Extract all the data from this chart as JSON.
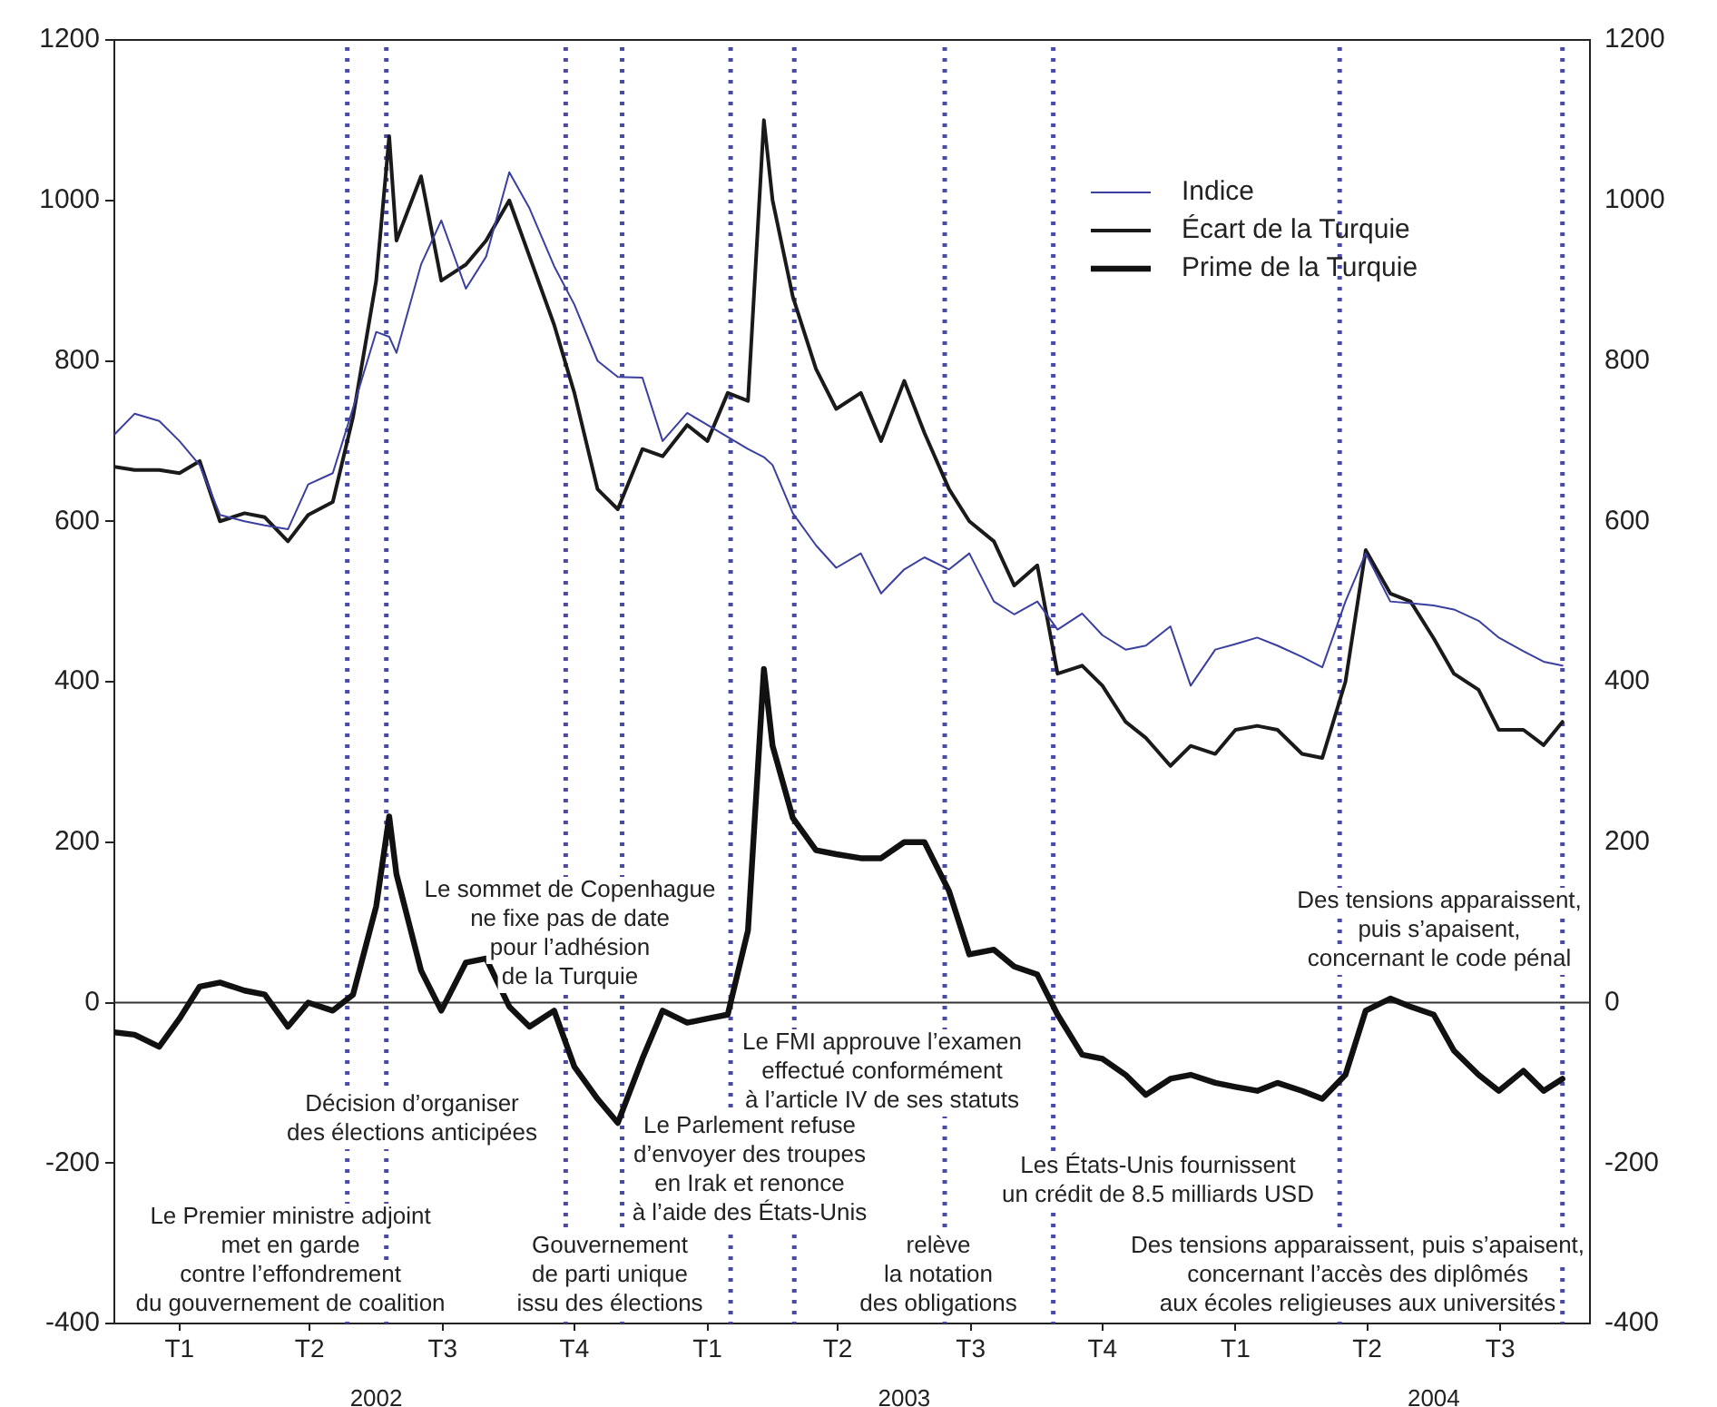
{
  "chart_data": {
    "type": "line",
    "x": [
      "2002-01-01",
      "2002-01-15",
      "2002-02-01",
      "2002-02-15",
      "2002-03-01",
      "2002-03-15",
      "2002-04-01",
      "2002-04-15",
      "2002-05-01",
      "2002-05-15",
      "2002-06-01",
      "2002-06-15",
      "2002-07-01",
      "2002-07-10",
      "2002-07-15",
      "2002-08-01",
      "2002-08-15",
      "2002-09-01",
      "2002-09-15",
      "2002-10-01",
      "2002-10-15",
      "2002-11-01",
      "2002-11-15",
      "2002-12-01",
      "2002-12-15",
      "2003-01-01",
      "2003-01-15",
      "2003-02-01",
      "2003-02-15",
      "2003-03-01",
      "2003-03-15",
      "2003-03-26",
      "2003-04-01",
      "2003-04-15",
      "2003-05-01",
      "2003-05-15",
      "2003-06-01",
      "2003-06-15",
      "2003-07-01",
      "2003-07-15",
      "2003-08-01",
      "2003-08-15",
      "2003-09-01",
      "2003-09-15",
      "2003-10-01",
      "2003-10-15",
      "2003-11-01",
      "2003-11-15",
      "2003-12-01",
      "2003-12-15",
      "2004-01-01",
      "2004-01-15",
      "2004-02-01",
      "2004-02-15",
      "2004-03-01",
      "2004-03-15",
      "2004-04-01",
      "2004-04-15",
      "2004-05-01",
      "2004-05-15",
      "2004-06-01",
      "2004-06-15",
      "2004-07-01",
      "2004-07-15",
      "2004-08-01",
      "2004-08-15",
      "2004-09-01",
      "2004-09-15",
      "2004-09-28"
    ],
    "series": [
      {
        "name": "Indice",
        "color": "#3a3fa0",
        "values": [
          708,
          734,
          725,
          700,
          670,
          608,
          600,
          595,
          590,
          646,
          660,
          741,
          836,
          830,
          810,
          920,
          975,
          890,
          930,
          1035,
          990,
          918,
          870,
          800,
          780,
          779,
          700,
          735,
          720,
          705,
          690,
          680,
          670,
          610,
          570,
          542,
          560,
          510,
          540,
          555,
          540,
          560,
          500,
          484,
          500,
          465,
          485,
          458,
          440,
          445,
          469,
          395,
          440,
          447,
          455,
          445,
          431,
          418,
          500,
          560,
          500,
          498,
          495,
          490,
          476,
          455,
          438,
          425,
          420
        ]
      },
      {
        "name": "Écart de la Turquie",
        "color": "#1a1a1a",
        "values": [
          668,
          664,
          664,
          660,
          675,
          600,
          610,
          605,
          575,
          608,
          624,
          730,
          900,
          1080,
          950,
          1030,
          900,
          920,
          950,
          1000,
          930,
          845,
          760,
          640,
          615,
          690,
          681,
          720,
          700,
          760,
          750,
          1100,
          1000,
          880,
          790,
          740,
          760,
          700,
          775,
          710,
          640,
          600,
          575,
          520,
          545,
          410,
          420,
          395,
          350,
          330,
          295,
          320,
          310,
          340,
          345,
          340,
          310,
          305,
          400,
          564,
          510,
          500,
          454,
          410,
          390,
          340,
          340,
          321,
          350
        ]
      },
      {
        "name": "Prime de la Turquie",
        "color": "#111111",
        "values": [
          -37,
          -40,
          -55,
          -20,
          20,
          25,
          15,
          10,
          -30,
          0,
          -10,
          10,
          120,
          232,
          160,
          40,
          -10,
          50,
          55,
          -5,
          -30,
          -10,
          -80,
          -120,
          -150,
          -70,
          -10,
          -25,
          -20,
          -15,
          90,
          416,
          320,
          230,
          190,
          185,
          180,
          180,
          200,
          200,
          139,
          60,
          66,
          45,
          35,
          -15,
          -65,
          -70,
          -90,
          -115,
          -95,
          -90,
          -100,
          -105,
          -110,
          -100,
          -110,
          -120,
          -90,
          -10,
          5,
          -5,
          -15,
          -60,
          -90,
          -110,
          -85,
          -110,
          -95
        ]
      }
    ],
    "xlim": [
      "2002-01-01",
      "2004-10-17"
    ],
    "xticks": [
      {
        "value": "2002-02-15",
        "label": "T1"
      },
      {
        "value": "2002-05-16",
        "label": "T2"
      },
      {
        "value": "2002-08-16",
        "label": "T3"
      },
      {
        "value": "2002-11-15",
        "label": "T4"
      },
      {
        "value": "2003-02-15",
        "label": "T1"
      },
      {
        "value": "2003-05-16",
        "label": "T2"
      },
      {
        "value": "2003-08-16",
        "label": "T3"
      },
      {
        "value": "2003-11-15",
        "label": "T4"
      },
      {
        "value": "2004-02-15",
        "label": "T1"
      },
      {
        "value": "2004-05-16",
        "label": "T2"
      },
      {
        "value": "2004-08-16",
        "label": "T3"
      }
    ],
    "x2lim": [
      "2002-01-01",
      "2004-10-17"
    ],
    "x2ticks": [
      {
        "value": "2002-07-01",
        "label": "2002"
      },
      {
        "value": "2003-07-01",
        "label": "2003"
      },
      {
        "value": "2004-07-01",
        "label": "2004"
      }
    ],
    "ylim": [
      -400,
      1200
    ],
    "yticks": [
      -400,
      -200,
      0,
      200,
      400,
      600,
      800,
      1000,
      1200
    ],
    "y2lim": [
      -400,
      1200
    ],
    "y2ticks": [
      -400,
      -200,
      0,
      200,
      400,
      600,
      800,
      1000,
      1200
    ],
    "grid": false,
    "legend": "top right",
    "marker": "none",
    "line_style": "solid",
    "ref_lines": [
      {
        "axis": "y",
        "value": 0,
        "color": "#333333",
        "line_style": "solid"
      },
      {
        "axis": "x",
        "value": "2002-06-11",
        "color": "#4a4aa8",
        "line_style": "dotted"
      },
      {
        "axis": "x",
        "value": "2002-07-08",
        "color": "#4a4aa8",
        "line_style": "dotted"
      },
      {
        "axis": "x",
        "value": "2002-11-09",
        "color": "#4a4aa8",
        "line_style": "dotted"
      },
      {
        "axis": "x",
        "value": "2002-12-18",
        "color": "#4a4aa8",
        "line_style": "dotted"
      },
      {
        "axis": "x",
        "value": "2003-03-03",
        "color": "#4a4aa8",
        "line_style": "dotted"
      },
      {
        "axis": "x",
        "value": "2003-04-16",
        "color": "#4a4aa8",
        "line_style": "dotted"
      },
      {
        "axis": "x",
        "value": "2003-07-29",
        "color": "#4a4aa8",
        "line_style": "dotted"
      },
      {
        "axis": "x",
        "value": "2003-10-12",
        "color": "#4a4aa8",
        "line_style": "dotted"
      },
      {
        "axis": "x",
        "value": "2004-04-27",
        "color": "#4a4aa8",
        "line_style": "dotted"
      },
      {
        "axis": "x",
        "value": "2004-09-28",
        "color": "#4a4aa8",
        "line_style": "dotted"
      }
    ],
    "annotations": [
      "Le Premier ministre adjoint\nmet en garde\ncontre l’effondrement\ndu gouvernement de coalition",
      "Décision d’organiser\ndes élections anticipées",
      "Le sommet de Copenhague\nne fixe pas de date\npour l’adhésion\nde la Turquie",
      "Gouvernement\nde parti unique\nissu des élections",
      "Le Parlement refuse\nd’envoyer des troupes\nen Irak et renonce\nà l’aide des États-Unis",
      "Le FMI approuve l’examen\neffectué conformément\nà l’article IV de ses statuts",
      "relève\nla notation\ndes obligations",
      "Les États-Unis fournissent\nun crédit de 8.5 milliards USD",
      "Des tensions apparaissent,\npuis s’apaisent,\nconcernant le code pénal",
      "Des tensions apparaissent, puis s’apaisent,\nconcernant l’accès des diplômés\naux écoles religieuses aux universités"
    ]
  }
}
